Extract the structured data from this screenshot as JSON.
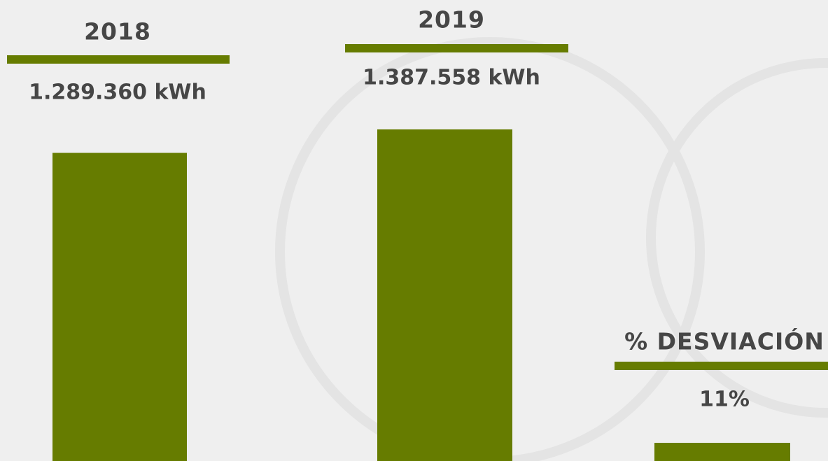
{
  "chart_data": {
    "type": "bar",
    "categories": [
      "2018",
      "2019",
      "% DESVIACIÓN"
    ],
    "values": [
      1289360,
      1387558,
      11
    ],
    "value_labels": [
      "1.289.360 kWh",
      "1.387.558 kWh",
      "11%"
    ],
    "color": "#667c00"
  }
}
